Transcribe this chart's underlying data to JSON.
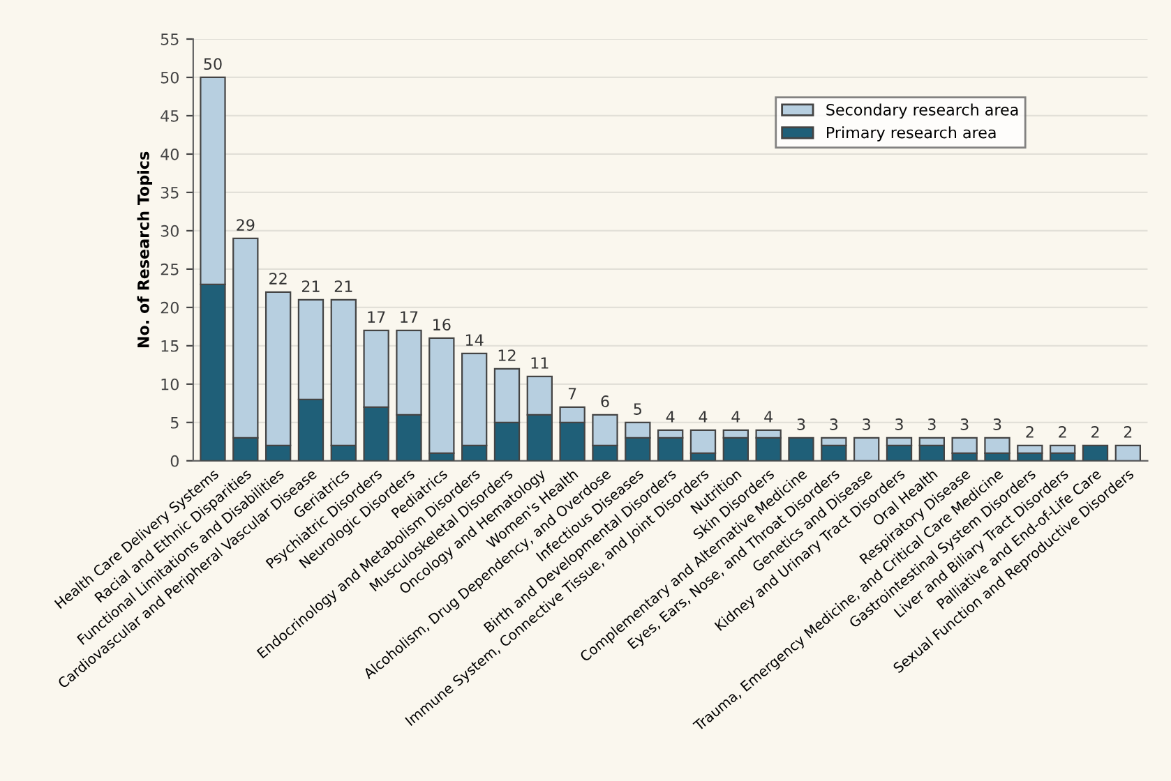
{
  "chart_data": {
    "type": "bar",
    "stacked": true,
    "ylabel": "No. of Research Topics",
    "categories": [
      "Health Care Delivery Systems",
      "Racial and Ethnic Disparities",
      "Functional Limitations and Disabilities",
      "Cardiovascular and Peripheral Vascular Disease",
      "Geriatrics",
      "Psychiatric Disorders",
      "Neurologic Disorders",
      "Pediatrics",
      "Endocrinology and Metabolism Disorders",
      "Musculoskeletal Disorders",
      "Oncology and Hematology",
      "Women's Health",
      "Alcoholism, Drug Dependency, and Overdose",
      "Infectious Diseases",
      "Birth and Developmental Disorders",
      "Immune System, Connective Tissue, and Joint Disorders",
      "Nutrition",
      "Skin Disorders",
      "Complementary and Alternative Medicine",
      "Eyes, Ears, Nose, and Throat Disorders",
      "Genetics and Disease",
      "Kidney and Urinary Tract Disorders",
      "Oral Health",
      "Respiratory Disease",
      "Trauma, Emergency Medicine, and Critical Care Medicine",
      "Gastrointestinal System Disorders",
      "Liver and Biliary Tract Disorders",
      "Palliative and End-of-Life Care",
      "Sexual Function and Reproductive Disorders"
    ],
    "series": [
      {
        "name": "Primary research area",
        "color": "#1f5f78",
        "values": [
          23,
          3,
          2,
          8,
          2,
          7,
          6,
          1,
          2,
          5,
          6,
          5,
          2,
          3,
          3,
          1,
          3,
          3,
          3,
          2,
          0,
          2,
          2,
          1,
          1,
          1,
          1,
          2,
          0
        ]
      },
      {
        "name": "Secondary research area",
        "color": "#b7cfe0",
        "values": [
          27,
          26,
          20,
          13,
          19,
          10,
          11,
          15,
          12,
          7,
          5,
          2,
          4,
          2,
          1,
          3,
          1,
          1,
          0,
          1,
          3,
          1,
          1,
          2,
          2,
          1,
          1,
          0,
          2
        ]
      }
    ],
    "totals": [
      "50",
      "29",
      "22",
      "21",
      "21",
      "17",
      "17",
      "16",
      "14",
      "12",
      "11",
      "7",
      "6",
      "5",
      "4",
      "4",
      "4",
      "4",
      "3",
      "3",
      "3",
      "3",
      "3",
      "3",
      "3",
      "2",
      "2",
      "2",
      "2"
    ],
    "ylim": [
      0,
      55
    ],
    "yticks": [
      0,
      5,
      10,
      15,
      20,
      25,
      30,
      35,
      40,
      45,
      50,
      55
    ],
    "grid": "y",
    "legend": "top right"
  }
}
